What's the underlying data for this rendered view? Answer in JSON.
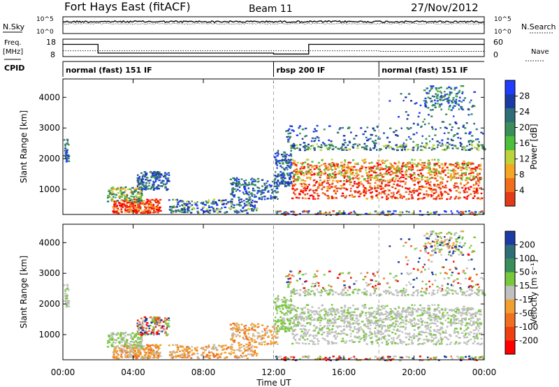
{
  "header": {
    "site": "Fort Hays East (fitACF)",
    "beam": "Beam 11",
    "date": "27/Nov/2012"
  },
  "noise_panel": {
    "left_label": "N.Sky",
    "right_label": "N.Search",
    "ticks": [
      "10^5",
      "10^0"
    ]
  },
  "freq_panel": {
    "left_label_1": "Freq.",
    "left_label_2": "[MHz]",
    "left_ticks": [
      "18",
      "8"
    ],
    "right_ticks": [
      "60",
      "0"
    ],
    "right_label": "Nave"
  },
  "cpid": {
    "label": "CPID",
    "segments": [
      {
        "label": "normal (fast) 151 IF",
        "start_hour": 0,
        "end_hour": 12
      },
      {
        "label": "rbsp 200 IF",
        "start_hour": 12,
        "end_hour": 18
      },
      {
        "label": "normal (fast) 151 IF",
        "start_hour": 18,
        "end_hour": 24
      }
    ]
  },
  "colors": {
    "power": [
      "#1f3cff",
      "#1c3aa4",
      "#2f6e78",
      "#3a8e5a",
      "#4cbf3b",
      "#bcd43a",
      "#f5a623",
      "#f06e1c",
      "#e33a18",
      "#ff0000"
    ],
    "velocity": [
      "#1c3aa4",
      "#2f6e78",
      "#3a8e5a",
      "#78c83c",
      "#c0c0c0",
      "#f0a030",
      "#f07020",
      "#f04010",
      "#ff0000"
    ]
  },
  "chart_data": [
    {
      "type": "line",
      "title": "",
      "ylabel": "N.Sky / N.Search",
      "x_range_hours": [
        0,
        24
      ],
      "ylim_log10": [
        0,
        5
      ]
    },
    {
      "type": "line",
      "ylabel": "Freq. [MHz]",
      "ylim": [
        8,
        18
      ],
      "y2lim": [
        0,
        60
      ],
      "series": [
        {
          "name": "Freq.",
          "x": [
            0,
            2,
            2,
            12,
            12,
            14,
            14,
            24
          ],
          "values": [
            15,
            15,
            10,
            10,
            9.5,
            9.5,
            15,
            15
          ]
        },
        {
          "name": "Nave",
          "x": [
            0,
            12,
            12,
            14,
            14,
            18,
            18,
            24
          ],
          "values": [
            20,
            20,
            20,
            20,
            20,
            20,
            18,
            18
          ]
        }
      ]
    },
    {
      "type": "heatmap",
      "ylabel": "Slant Range [km]",
      "yticks": [
        "1000",
        "2000",
        "3000",
        "4000"
      ],
      "ylim": [
        180,
        4600
      ],
      "xlim_hours": [
        0,
        24
      ],
      "colorbar_label": "Power [dB]",
      "colorbar_ticks": [
        "28",
        "24",
        "20",
        "16",
        "12",
        "8",
        "4"
      ],
      "colorbar_range": [
        0,
        32
      ]
    },
    {
      "type": "heatmap",
      "ylabel": "Slant Range [km]",
      "yticks": [
        "1000",
        "2000",
        "3000",
        "4000"
      ],
      "ylim": [
        180,
        4600
      ],
      "xlim_hours": [
        0,
        24
      ],
      "colorbar_label": "Velocity [m s⁻¹]",
      "colorbar_ticks": [
        "200",
        "100",
        "50",
        "15",
        "-15",
        "-50",
        "-100",
        "-200"
      ]
    }
  ],
  "x_axis": {
    "ticks": [
      "00:00",
      "04:00",
      "08:00",
      "12:00",
      "16:00",
      "20:00",
      "00:00"
    ],
    "label": "Time UT"
  }
}
